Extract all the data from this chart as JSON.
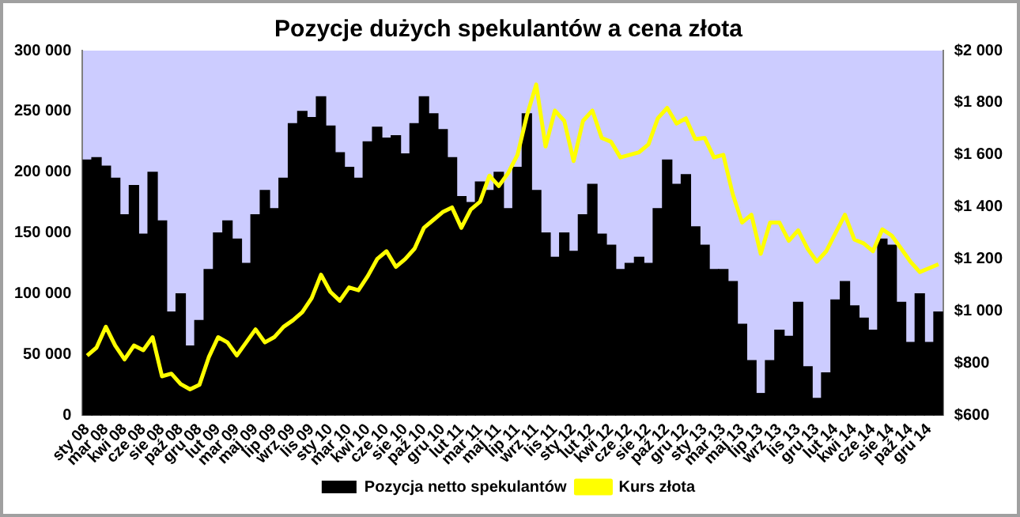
{
  "chart_data": {
    "type": "bar",
    "title": "Pozycje dużych spekulantów a cena złota",
    "categories": [
      "sty 08",
      null,
      "mar 08",
      null,
      "kwi 08",
      null,
      "cze 08",
      null,
      "sie 08",
      null,
      "paź 08",
      null,
      "gru 08",
      null,
      "lut 09",
      null,
      "mar 09",
      null,
      "maj 09",
      null,
      "lip 09",
      null,
      "wrz 09",
      null,
      "lis 09",
      null,
      "sty 10",
      null,
      "mar 10",
      null,
      "kwi 10",
      null,
      "cze 10",
      null,
      "sie 10",
      null,
      "paź 10",
      null,
      "gru 10",
      null,
      "lut 11",
      null,
      "mar 11",
      null,
      "maj 11",
      null,
      "lip 11",
      null,
      "wrz 11",
      null,
      "lis 11",
      null,
      "sty 12",
      null,
      "lut 12",
      null,
      "kwi 12",
      null,
      "cze 12",
      null,
      "sie 12",
      null,
      "paź 12",
      null,
      "gru 12",
      null,
      "sty 13",
      null,
      "mar 13",
      null,
      "maj 13",
      null,
      "lip 13",
      null,
      "wrz 13",
      null,
      "lis 13",
      null,
      "gru 13",
      null,
      "lut 14",
      null,
      "kwi 14",
      null,
      "cze 14",
      null,
      "sie 14",
      null,
      "paź 14",
      null,
      "gru 14",
      null
    ],
    "series": [
      {
        "name": "Pozycja netto spekulantów",
        "color": "#000000",
        "values": [
          210000,
          212000,
          205000,
          195000,
          165000,
          189000,
          149000,
          200000,
          160000,
          85000,
          100000,
          57000,
          78000,
          120000,
          150000,
          160000,
          145000,
          125000,
          165000,
          185000,
          170000,
          195000,
          240000,
          250000,
          245000,
          262000,
          238000,
          216000,
          204000,
          195000,
          225000,
          237000,
          228000,
          230000,
          215000,
          240000,
          262000,
          248000,
          235000,
          212000,
          180000,
          175000,
          192000,
          185000,
          200000,
          170000,
          204000,
          248000,
          185000,
          150000,
          130000,
          150000,
          135000,
          165000,
          190000,
          149000,
          140000,
          120000,
          125000,
          130000,
          125000,
          170000,
          210000,
          190000,
          198000,
          155000,
          140000,
          120000,
          120000,
          110000,
          75000,
          45000,
          18000,
          45000,
          70000,
          65000,
          93000,
          40000,
          14000,
          35000,
          95000,
          110000,
          90000,
          80000,
          70000,
          145000,
          140000,
          93000,
          60000,
          100000,
          60000,
          85000
        ]
      },
      {
        "name": "Kurs złota",
        "type": "line",
        "axis": "y2",
        "color": "#ffff00",
        "values": [
          829,
          860,
          940,
          868,
          815,
          868,
          850,
          900,
          750,
          760,
          720,
          700,
          717,
          823,
          900,
          880,
          830,
          880,
          930,
          880,
          900,
          940,
          965,
          996,
          1050,
          1140,
          1074,
          1040,
          1091,
          1080,
          1135,
          1200,
          1230,
          1170,
          1200,
          1240,
          1320,
          1350,
          1380,
          1398,
          1320,
          1390,
          1420,
          1520,
          1480,
          1530,
          1600,
          1750,
          1870,
          1632,
          1770,
          1730,
          1576,
          1730,
          1770,
          1665,
          1650,
          1590,
          1600,
          1610,
          1640,
          1740,
          1780,
          1720,
          1740,
          1660,
          1665,
          1590,
          1600,
          1450,
          1340,
          1370,
          1220,
          1340,
          1340,
          1270,
          1310,
          1240,
          1190,
          1230,
          1300,
          1370,
          1275,
          1260,
          1230,
          1314,
          1290,
          1241,
          1190,
          1150,
          1165,
          1180
        ]
      }
    ],
    "ylim": [
      0,
      300000
    ],
    "yticks": [
      {
        "value": 0,
        "label": "0"
      },
      {
        "value": 50000,
        "label": "50 000"
      },
      {
        "value": 100000,
        "label": "100 000"
      },
      {
        "value": 150000,
        "label": "150 000"
      },
      {
        "value": 200000,
        "label": "200 000"
      },
      {
        "value": 250000,
        "label": "250 000"
      },
      {
        "value": 300000,
        "label": "300 000"
      }
    ],
    "y2lim": [
      600,
      2000
    ],
    "y2ticks": [
      {
        "value": 600,
        "label": "$600"
      },
      {
        "value": 800,
        "label": "$800"
      },
      {
        "value": 1000,
        "label": "$1 000"
      },
      {
        "value": 1200,
        "label": "$1 200"
      },
      {
        "value": 1400,
        "label": "$1 400"
      },
      {
        "value": 1600,
        "label": "$1 600"
      },
      {
        "value": 1800,
        "label": "$1 800"
      },
      {
        "value": 2000,
        "label": "$2 000"
      }
    ],
    "legend": "bottom",
    "grid": false
  }
}
